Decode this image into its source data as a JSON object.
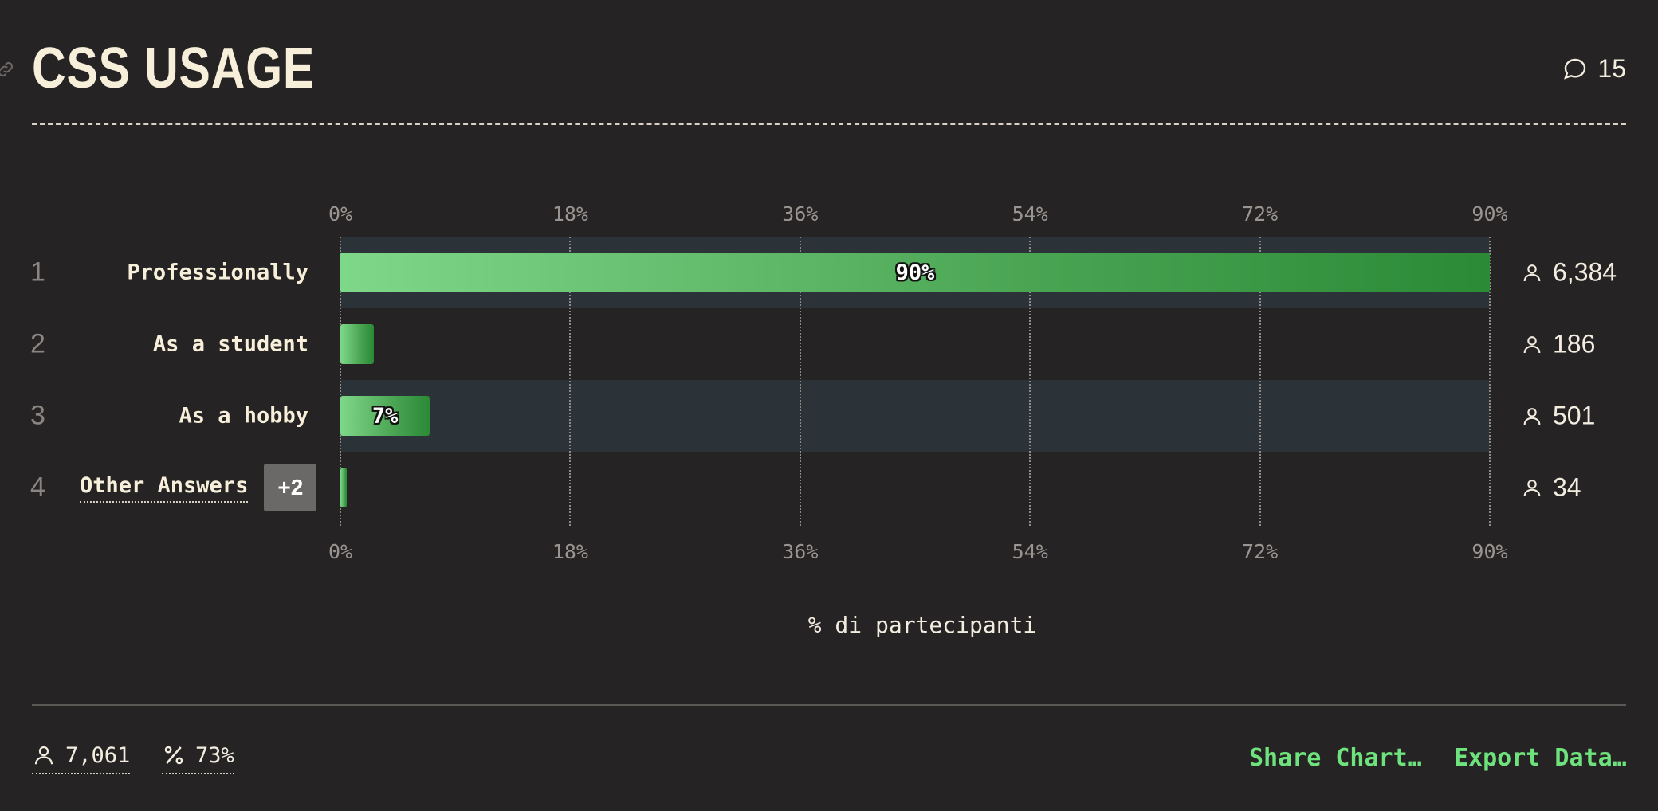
{
  "header": {
    "title": "CSS USAGE",
    "comment_count": "15"
  },
  "chart_data": {
    "type": "bar",
    "orientation": "horizontal",
    "xlim": [
      0,
      90
    ],
    "ticks": [
      "0%",
      "18%",
      "36%",
      "54%",
      "72%",
      "90%"
    ],
    "tick_values": [
      0,
      18,
      36,
      54,
      72,
      90
    ],
    "xlabel": "% di partecipanti",
    "grid": true,
    "rows": [
      {
        "rank": "1",
        "label": "Professionally",
        "percent": 90,
        "percent_label": "90%",
        "count": "6,384"
      },
      {
        "rank": "2",
        "label": "As a student",
        "percent": 2.6,
        "percent_label": "",
        "count": "186"
      },
      {
        "rank": "3",
        "label": "As a hobby",
        "percent": 7,
        "percent_label": "7%",
        "count": "501"
      },
      {
        "rank": "4",
        "label": "Other Answers",
        "badge": "+2",
        "percent": 0.5,
        "percent_label": "",
        "count": "34"
      }
    ]
  },
  "footer": {
    "respondents": "7,061",
    "completion": "73%",
    "share_label": "Share Chart…",
    "export_label": "Export Data…"
  },
  "colors": {
    "background": "#262324",
    "bar_start": "#7fd88a",
    "bar_end": "#2a8a36",
    "accent": "#6ee37d",
    "alt_row": "#2c3338"
  }
}
